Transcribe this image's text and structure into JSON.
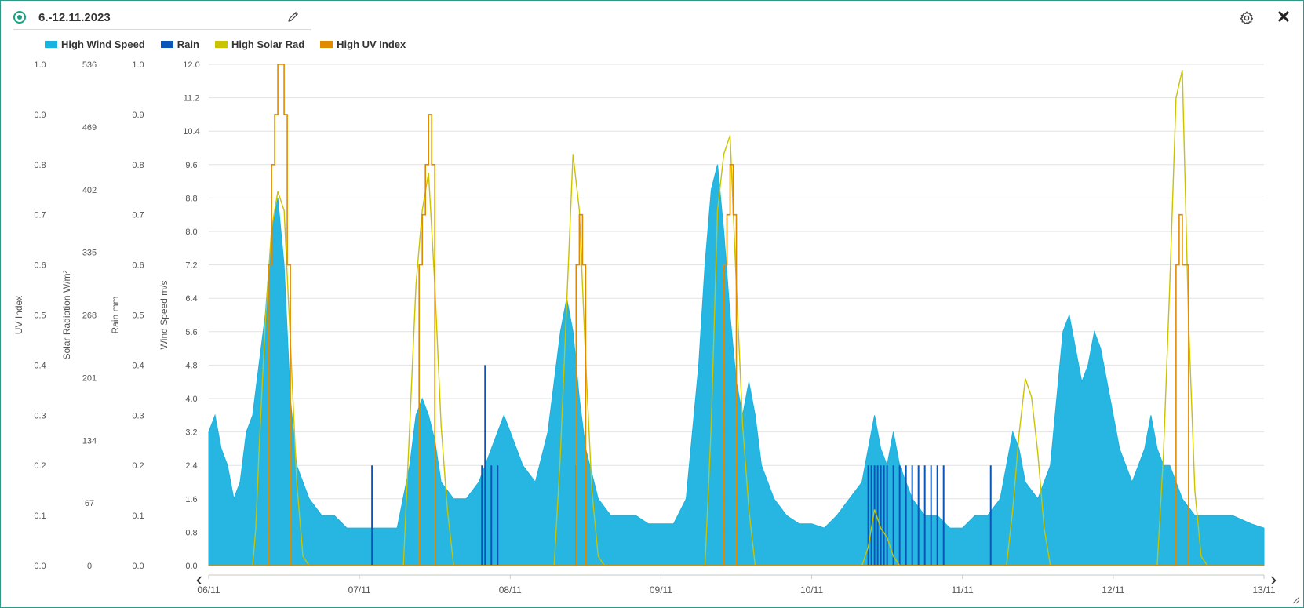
{
  "header": {
    "title": "6.-12.11.2023"
  },
  "icons": {
    "status": "radio-selected-icon",
    "edit": "pencil-icon",
    "settings": "gear-icon",
    "close": "close-icon",
    "prev": "chevron-left-icon",
    "next": "chevron-right-icon",
    "resize": "resize-grip-icon"
  },
  "controls": {
    "close_glyph": "✕",
    "prev_glyph": "‹",
    "next_glyph": "›"
  },
  "legend": [
    {
      "label": "High Wind Speed",
      "color": "#1ab2df"
    },
    {
      "label": "Rain",
      "color": "#0a57b8"
    },
    {
      "label": "High Solar Rad",
      "color": "#c9c300"
    },
    {
      "label": "High UV Index",
      "color": "#e08a00"
    }
  ],
  "chart_data": {
    "type": "line",
    "x_ticks": [
      "06/11",
      "07/11",
      "08/11",
      "09/11",
      "10/11",
      "11/11",
      "12/11",
      "13/11"
    ],
    "x_range": [
      "2023-11-06 00:00",
      "2023-11-13 00:00"
    ],
    "grid": true,
    "legend_position": "top-left",
    "axes": [
      {
        "label": "UV Index",
        "range": [
          0,
          1.0
        ],
        "ticks": [
          "0.0",
          "0.1",
          "0.2",
          "0.3",
          "0.4",
          "0.5",
          "0.6",
          "0.7",
          "0.8",
          "0.9",
          "1.0"
        ]
      },
      {
        "label": "Solar Radiation W/m²",
        "range": [
          0,
          536
        ],
        "ticks": [
          "0",
          "67",
          "134",
          "201",
          "268",
          "335",
          "402",
          "469",
          "536"
        ]
      },
      {
        "label": "Rain mm",
        "range": [
          0,
          1.0
        ],
        "ticks": [
          "0.0",
          "0.1",
          "0.2",
          "0.3",
          "0.4",
          "0.5",
          "0.6",
          "0.7",
          "0.8",
          "0.9",
          "1.0"
        ]
      },
      {
        "label": "Wind Speed m/s",
        "range": [
          0,
          12.0
        ],
        "ticks": [
          "0.0",
          "0.8",
          "1.6",
          "2.4",
          "3.2",
          "4.0",
          "4.8",
          "5.6",
          "6.4",
          "7.2",
          "8.0",
          "8.8",
          "9.6",
          "10.4",
          "11.2",
          "12.0"
        ]
      }
    ],
    "series": [
      {
        "name": "High Wind Speed",
        "axis": 3,
        "color": "#1ab2df",
        "kind": "area",
        "points": [
          [
            "2023-11-06 00:00",
            3.2
          ],
          [
            "2023-11-06 01:00",
            3.6
          ],
          [
            "2023-11-06 02:00",
            2.8
          ],
          [
            "2023-11-06 03:00",
            2.4
          ],
          [
            "2023-11-06 04:00",
            1.6
          ],
          [
            "2023-11-06 05:00",
            2.0
          ],
          [
            "2023-11-06 06:00",
            3.2
          ],
          [
            "2023-11-06 07:00",
            3.6
          ],
          [
            "2023-11-06 08:00",
            4.8
          ],
          [
            "2023-11-06 09:00",
            6.0
          ],
          [
            "2023-11-06 10:00",
            8.0
          ],
          [
            "2023-11-06 11:00",
            8.8
          ],
          [
            "2023-11-06 12:00",
            7.2
          ],
          [
            "2023-11-06 13:00",
            4.0
          ],
          [
            "2023-11-06 14:00",
            2.4
          ],
          [
            "2023-11-06 16:00",
            1.6
          ],
          [
            "2023-11-06 18:00",
            1.2
          ],
          [
            "2023-11-06 20:00",
            1.2
          ],
          [
            "2023-11-06 22:00",
            0.9
          ],
          [
            "2023-11-07 00:00",
            0.9
          ],
          [
            "2023-11-07 03:00",
            0.9
          ],
          [
            "2023-11-07 06:00",
            0.9
          ],
          [
            "2023-11-07 08:00",
            2.4
          ],
          [
            "2023-11-07 09:00",
            3.6
          ],
          [
            "2023-11-07 10:00",
            4.0
          ],
          [
            "2023-11-07 11:00",
            3.6
          ],
          [
            "2023-11-07 12:00",
            3.0
          ],
          [
            "2023-11-07 13:00",
            2.0
          ],
          [
            "2023-11-07 15:00",
            1.6
          ],
          [
            "2023-11-07 17:00",
            1.6
          ],
          [
            "2023-11-07 19:00",
            2.0
          ],
          [
            "2023-11-07 21:00",
            2.8
          ],
          [
            "2023-11-07 22:00",
            3.2
          ],
          [
            "2023-11-07 23:00",
            3.6
          ],
          [
            "2023-11-08 00:00",
            3.2
          ],
          [
            "2023-11-08 02:00",
            2.4
          ],
          [
            "2023-11-08 04:00",
            2.0
          ],
          [
            "2023-11-08 06:00",
            3.2
          ],
          [
            "2023-11-08 07:00",
            4.4
          ],
          [
            "2023-11-08 08:00",
            5.6
          ],
          [
            "2023-11-08 09:00",
            6.4
          ],
          [
            "2023-11-08 10:00",
            5.6
          ],
          [
            "2023-11-08 11:00",
            4.0
          ],
          [
            "2023-11-08 12:00",
            2.8
          ],
          [
            "2023-11-08 14:00",
            1.6
          ],
          [
            "2023-11-08 16:00",
            1.2
          ],
          [
            "2023-11-08 18:00",
            1.2
          ],
          [
            "2023-11-08 20:00",
            1.2
          ],
          [
            "2023-11-08 22:00",
            1.0
          ],
          [
            "2023-11-09 00:00",
            1.0
          ],
          [
            "2023-11-09 02:00",
            1.0
          ],
          [
            "2023-11-09 04:00",
            1.6
          ],
          [
            "2023-11-09 05:00",
            3.2
          ],
          [
            "2023-11-09 06:00",
            4.8
          ],
          [
            "2023-11-09 07:00",
            7.2
          ],
          [
            "2023-11-09 08:00",
            9.0
          ],
          [
            "2023-11-09 09:00",
            9.6
          ],
          [
            "2023-11-09 10:00",
            8.0
          ],
          [
            "2023-11-09 11:00",
            6.0
          ],
          [
            "2023-11-09 12:00",
            4.4
          ],
          [
            "2023-11-09 13:00",
            3.6
          ],
          [
            "2023-11-09 14:00",
            4.4
          ],
          [
            "2023-11-09 15:00",
            3.6
          ],
          [
            "2023-11-09 16:00",
            2.4
          ],
          [
            "2023-11-09 18:00",
            1.6
          ],
          [
            "2023-11-09 20:00",
            1.2
          ],
          [
            "2023-11-09 22:00",
            1.0
          ],
          [
            "2023-11-10 00:00",
            1.0
          ],
          [
            "2023-11-10 02:00",
            0.9
          ],
          [
            "2023-11-10 04:00",
            1.2
          ],
          [
            "2023-11-10 06:00",
            1.6
          ],
          [
            "2023-11-10 08:00",
            2.0
          ],
          [
            "2023-11-10 09:00",
            2.8
          ],
          [
            "2023-11-10 10:00",
            3.6
          ],
          [
            "2023-11-10 11:00",
            2.8
          ],
          [
            "2023-11-10 12:00",
            2.4
          ],
          [
            "2023-11-10 13:00",
            3.2
          ],
          [
            "2023-11-10 14:00",
            2.4
          ],
          [
            "2023-11-10 16:00",
            1.6
          ],
          [
            "2023-11-10 18:00",
            1.2
          ],
          [
            "2023-11-10 20:00",
            1.2
          ],
          [
            "2023-11-10 22:00",
            0.9
          ],
          [
            "2023-11-11 00:00",
            0.9
          ],
          [
            "2023-11-11 02:00",
            1.2
          ],
          [
            "2023-11-11 04:00",
            1.2
          ],
          [
            "2023-11-11 06:00",
            1.6
          ],
          [
            "2023-11-11 07:00",
            2.4
          ],
          [
            "2023-11-11 08:00",
            3.2
          ],
          [
            "2023-11-11 09:00",
            2.8
          ],
          [
            "2023-11-11 10:00",
            2.0
          ],
          [
            "2023-11-11 12:00",
            1.6
          ],
          [
            "2023-11-11 14:00",
            2.4
          ],
          [
            "2023-11-11 15:00",
            4.0
          ],
          [
            "2023-11-11 16:00",
            5.6
          ],
          [
            "2023-11-11 17:00",
            6.0
          ],
          [
            "2023-11-11 18:00",
            5.2
          ],
          [
            "2023-11-11 19:00",
            4.4
          ],
          [
            "2023-11-11 20:00",
            4.8
          ],
          [
            "2023-11-11 21:00",
            5.6
          ],
          [
            "2023-11-11 22:00",
            5.2
          ],
          [
            "2023-11-11 23:00",
            4.4
          ],
          [
            "2023-11-12 00:00",
            3.6
          ],
          [
            "2023-11-12 01:00",
            2.8
          ],
          [
            "2023-11-12 03:00",
            2.0
          ],
          [
            "2023-11-12 05:00",
            2.8
          ],
          [
            "2023-11-12 06:00",
            3.6
          ],
          [
            "2023-11-12 07:00",
            2.8
          ],
          [
            "2023-11-12 08:00",
            2.4
          ],
          [
            "2023-11-12 09:00",
            2.4
          ],
          [
            "2023-11-12 10:00",
            2.0
          ],
          [
            "2023-11-12 11:00",
            1.6
          ],
          [
            "2023-11-12 13:00",
            1.2
          ],
          [
            "2023-11-12 16:00",
            1.2
          ],
          [
            "2023-11-12 19:00",
            1.2
          ],
          [
            "2023-11-12 22:00",
            1.0
          ],
          [
            "2023-11-13 00:00",
            0.9
          ]
        ]
      },
      {
        "name": "Rain",
        "axis": 2,
        "color": "#0a57b8",
        "kind": "spikes",
        "points": [
          [
            "2023-11-07 02:00",
            0.2
          ],
          [
            "2023-11-07 19:30",
            0.2
          ],
          [
            "2023-11-07 20:00",
            0.4
          ],
          [
            "2023-11-07 21:00",
            0.2
          ],
          [
            "2023-11-07 22:00",
            0.2
          ],
          [
            "2023-11-08 10:30",
            0.2
          ],
          [
            "2023-11-10 09:00",
            0.2
          ],
          [
            "2023-11-10 09:30",
            0.2
          ],
          [
            "2023-11-10 10:00",
            0.2
          ],
          [
            "2023-11-10 10:30",
            0.2
          ],
          [
            "2023-11-10 11:00",
            0.2
          ],
          [
            "2023-11-10 11:30",
            0.2
          ],
          [
            "2023-11-10 12:00",
            0.2
          ],
          [
            "2023-11-10 13:00",
            0.2
          ],
          [
            "2023-11-10 14:00",
            0.2
          ],
          [
            "2023-11-10 15:00",
            0.2
          ],
          [
            "2023-11-10 16:00",
            0.2
          ],
          [
            "2023-11-10 17:00",
            0.2
          ],
          [
            "2023-11-10 18:00",
            0.2
          ],
          [
            "2023-11-10 19:00",
            0.2
          ],
          [
            "2023-11-10 20:00",
            0.2
          ],
          [
            "2023-11-10 21:00",
            0.2
          ],
          [
            "2023-11-11 04:30",
            0.2
          ]
        ]
      },
      {
        "name": "High Solar Rad",
        "axis": 1,
        "color": "#c9c300",
        "kind": "line",
        "points": [
          [
            "2023-11-06 07:00",
            0
          ],
          [
            "2023-11-06 07:30",
            40
          ],
          [
            "2023-11-06 08:00",
            120
          ],
          [
            "2023-11-06 09:00",
            260
          ],
          [
            "2023-11-06 10:00",
            360
          ],
          [
            "2023-11-06 11:00",
            400
          ],
          [
            "2023-11-06 12:00",
            380
          ],
          [
            "2023-11-06 13:00",
            240
          ],
          [
            "2023-11-06 14:00",
            90
          ],
          [
            "2023-11-06 15:00",
            10
          ],
          [
            "2023-11-06 16:00",
            0
          ],
          [
            "2023-11-07 07:00",
            0
          ],
          [
            "2023-11-07 08:00",
            150
          ],
          [
            "2023-11-07 09:00",
            300
          ],
          [
            "2023-11-07 10:00",
            380
          ],
          [
            "2023-11-07 11:00",
            420
          ],
          [
            "2023-11-07 12:00",
            300
          ],
          [
            "2023-11-07 13:00",
            150
          ],
          [
            "2023-11-07 14:00",
            60
          ],
          [
            "2023-11-07 15:00",
            0
          ],
          [
            "2023-11-08 07:00",
            0
          ],
          [
            "2023-11-08 08:00",
            120
          ],
          [
            "2023-11-08 09:00",
            280
          ],
          [
            "2023-11-08 10:00",
            440
          ],
          [
            "2023-11-08 11:00",
            380
          ],
          [
            "2023-11-08 12:00",
            220
          ],
          [
            "2023-11-08 13:00",
            80
          ],
          [
            "2023-11-08 14:00",
            10
          ],
          [
            "2023-11-08 15:00",
            0
          ],
          [
            "2023-11-09 07:00",
            0
          ],
          [
            "2023-11-09 08:00",
            150
          ],
          [
            "2023-11-09 09:00",
            380
          ],
          [
            "2023-11-09 10:00",
            440
          ],
          [
            "2023-11-09 11:00",
            460
          ],
          [
            "2023-11-09 12:00",
            300
          ],
          [
            "2023-11-09 13:00",
            150
          ],
          [
            "2023-11-09 14:00",
            60
          ],
          [
            "2023-11-09 15:00",
            0
          ],
          [
            "2023-11-10 08:00",
            0
          ],
          [
            "2023-11-10 09:00",
            20
          ],
          [
            "2023-11-10 10:00",
            60
          ],
          [
            "2023-11-10 11:00",
            40
          ],
          [
            "2023-11-10 12:00",
            30
          ],
          [
            "2023-11-10 13:00",
            10
          ],
          [
            "2023-11-10 14:00",
            0
          ],
          [
            "2023-11-11 07:00",
            0
          ],
          [
            "2023-11-11 08:00",
            60
          ],
          [
            "2023-11-11 09:00",
            140
          ],
          [
            "2023-11-11 10:00",
            200
          ],
          [
            "2023-11-11 11:00",
            180
          ],
          [
            "2023-11-11 12:00",
            120
          ],
          [
            "2023-11-11 13:00",
            40
          ],
          [
            "2023-11-11 14:00",
            0
          ],
          [
            "2023-11-12 07:00",
            0
          ],
          [
            "2023-11-12 08:00",
            120
          ],
          [
            "2023-11-12 09:00",
            300
          ],
          [
            "2023-11-12 10:00",
            500
          ],
          [
            "2023-11-12 11:00",
            530
          ],
          [
            "2023-11-12 12:00",
            260
          ],
          [
            "2023-11-12 13:00",
            80
          ],
          [
            "2023-11-12 14:00",
            10
          ],
          [
            "2023-11-12 15:00",
            0
          ]
        ]
      },
      {
        "name": "High UV Index",
        "axis": 0,
        "color": "#e08a00",
        "kind": "step",
        "points": [
          [
            "2023-11-06 09:00",
            0.0
          ],
          [
            "2023-11-06 09:30",
            0.6
          ],
          [
            "2023-11-06 10:00",
            0.8
          ],
          [
            "2023-11-06 10:30",
            0.9
          ],
          [
            "2023-11-06 11:00",
            1.0
          ],
          [
            "2023-11-06 12:00",
            0.9
          ],
          [
            "2023-11-06 12:30",
            0.6
          ],
          [
            "2023-11-06 13:00",
            0.0
          ],
          [
            "2023-11-07 09:00",
            0.0
          ],
          [
            "2023-11-07 09:30",
            0.6
          ],
          [
            "2023-11-07 10:00",
            0.7
          ],
          [
            "2023-11-07 10:30",
            0.8
          ],
          [
            "2023-11-07 11:00",
            0.9
          ],
          [
            "2023-11-07 11:30",
            0.8
          ],
          [
            "2023-11-07 12:00",
            0.0
          ],
          [
            "2023-11-08 10:00",
            0.0
          ],
          [
            "2023-11-08 10:30",
            0.6
          ],
          [
            "2023-11-08 11:00",
            0.7
          ],
          [
            "2023-11-08 11:30",
            0.6
          ],
          [
            "2023-11-08 12:00",
            0.0
          ],
          [
            "2023-11-09 09:30",
            0.0
          ],
          [
            "2023-11-09 10:00",
            0.6
          ],
          [
            "2023-11-09 10:30",
            0.7
          ],
          [
            "2023-11-09 11:00",
            0.8
          ],
          [
            "2023-11-09 11:30",
            0.7
          ],
          [
            "2023-11-09 12:00",
            0.0
          ],
          [
            "2023-11-12 09:30",
            0.0
          ],
          [
            "2023-11-12 10:00",
            0.6
          ],
          [
            "2023-11-12 10:30",
            0.7
          ],
          [
            "2023-11-12 11:00",
            0.6
          ],
          [
            "2023-11-12 12:00",
            0.0
          ]
        ]
      }
    ]
  }
}
